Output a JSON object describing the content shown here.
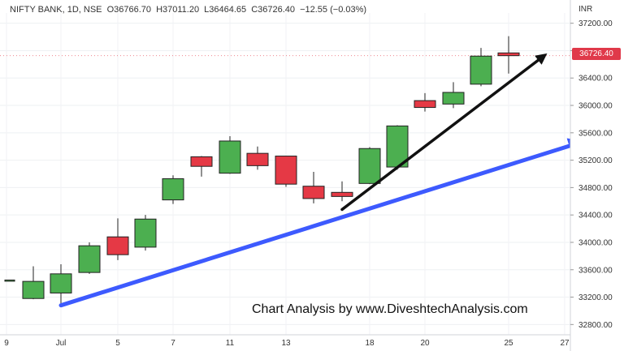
{
  "header": {
    "symbol": "NIFTY BANK, 1D, NSE",
    "open": "O36766.70",
    "high": "H37011.20",
    "low": "L36464.65",
    "close": "C36726.40",
    "change": "−12.55 (−0.03%)"
  },
  "currency": "INR",
  "watermark": "Chart Analysis by www.DiveshtechAnalysis.com",
  "last_price_tag": "36726.40",
  "colors": {
    "up": "#4caf50",
    "down": "#e53945",
    "trend_blue": "#3d5afe",
    "trend_black": "#111111"
  },
  "chart_data": {
    "type": "candlestick",
    "title": "",
    "xlabel": "",
    "ylabel": "",
    "ylim": [
      32650,
      37350
    ],
    "y_ticks": [
      "37200.00",
      "36800.00",
      "36400.00",
      "36000.00",
      "35600.00",
      "35200.00",
      "34800.00",
      "34400.00",
      "34000.00",
      "33600.00",
      "33200.00",
      "32800.00"
    ],
    "x_ticks": [
      "9",
      "Jul",
      "5",
      "7",
      "11",
      "13",
      "18",
      "20",
      "25",
      "27"
    ],
    "candles": [
      {
        "date": "Jun 30",
        "open": 33450,
        "high": 33450,
        "low": 33450,
        "close": 33450
      },
      {
        "date": "Jul 1",
        "open": 33180,
        "high": 33650,
        "low": 33170,
        "close": 33430
      },
      {
        "date": "Jul 4",
        "open": 33260,
        "high": 33680,
        "low": 33100,
        "close": 33540
      },
      {
        "date": "Jul 5",
        "open": 33560,
        "high": 34000,
        "low": 33540,
        "close": 33950
      },
      {
        "date": "Jul 6",
        "open": 34080,
        "high": 34350,
        "low": 33740,
        "close": 33820
      },
      {
        "date": "Jul 7",
        "open": 33930,
        "high": 34400,
        "low": 33880,
        "close": 34340
      },
      {
        "date": "Jul 8",
        "open": 34620,
        "high": 34980,
        "low": 34560,
        "close": 34930
      },
      {
        "date": "Jul 11",
        "open": 35250,
        "high": 35260,
        "low": 34960,
        "close": 35110
      },
      {
        "date": "Jul 12",
        "open": 35010,
        "high": 35550,
        "low": 35000,
        "close": 35480
      },
      {
        "date": "Jul 13",
        "open": 35300,
        "high": 35400,
        "low": 35060,
        "close": 35120
      },
      {
        "date": "Jul 14",
        "open": 35260,
        "high": 35260,
        "low": 34810,
        "close": 34850
      },
      {
        "date": "Jul 15",
        "open": 34820,
        "high": 35030,
        "low": 34570,
        "close": 34640
      },
      {
        "date": "Jul 18",
        "open": 34730,
        "high": 34890,
        "low": 34600,
        "close": 34670
      },
      {
        "date": "Jul 19",
        "open": 34860,
        "high": 35390,
        "low": 34850,
        "close": 35370
      },
      {
        "date": "Jul 20",
        "open": 35100,
        "high": 35710,
        "low": 35060,
        "close": 35700
      },
      {
        "date": "Jul 21",
        "open": 36070,
        "high": 36180,
        "low": 35910,
        "close": 35970
      },
      {
        "date": "Jul 22",
        "open": 36020,
        "high": 36340,
        "low": 35960,
        "close": 36190
      },
      {
        "date": "Jul 25",
        "open": 36310,
        "high": 36840,
        "low": 36280,
        "close": 36720
      },
      {
        "date": "Jul 26",
        "open": 36766.7,
        "high": 37011.2,
        "low": 36464.65,
        "close": 36726.4
      }
    ],
    "annotations": [
      {
        "type": "arrow",
        "color": "blue",
        "from": {
          "date": "Jul 1",
          "price": 33080
        },
        "to": {
          "date": "Jul 27",
          "price": 35450
        }
      },
      {
        "type": "arrow",
        "color": "black",
        "from": {
          "date": "Jul 18",
          "price": 34480
        },
        "to": {
          "date": "Jul 27",
          "price": 36720
        }
      }
    ]
  }
}
